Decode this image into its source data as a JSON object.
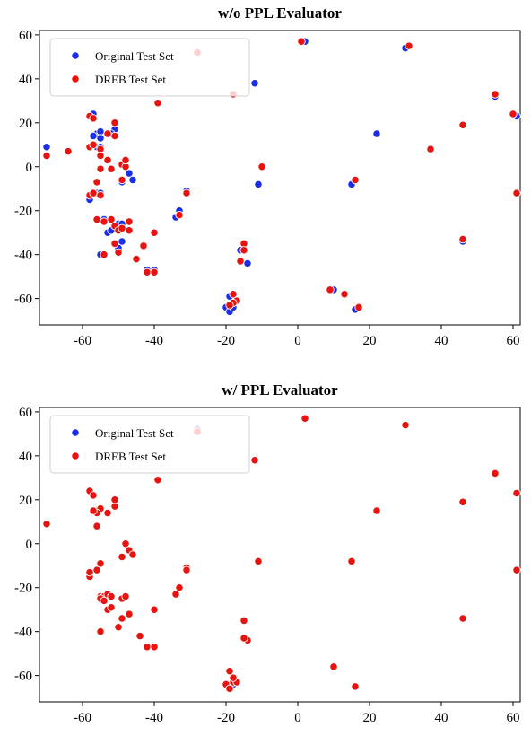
{
  "colors": {
    "original": "#1a2ee8",
    "dreb": "#e8120f"
  },
  "chart_data": [
    {
      "type": "scatter",
      "title": "w/o PPL Evaluator",
      "xlim": [
        -72,
        62
      ],
      "ylim": [
        -72,
        62
      ],
      "xticks": [
        -60,
        -40,
        -20,
        0,
        20,
        40,
        60
      ],
      "yticks": [
        -60,
        -40,
        -20,
        0,
        20,
        40,
        60
      ],
      "legend": {
        "position": "top-left",
        "entries": [
          "Original Test Set",
          "DREB Test Set"
        ]
      },
      "series": [
        {
          "name": "Original Test Set",
          "color": "#1a2ee8",
          "points": [
            [
              -70,
              9
            ],
            [
              -58,
              -15
            ],
            [
              -56,
              15
            ],
            [
              -55,
              16
            ],
            [
              -57,
              14
            ],
            [
              -56,
              9
            ],
            [
              -55,
              9
            ],
            [
              -57,
              22
            ],
            [
              -57,
              24
            ],
            [
              -51,
              17
            ],
            [
              -51,
              20
            ],
            [
              -52,
              15
            ],
            [
              -55,
              13
            ],
            [
              -56,
              -12
            ],
            [
              -55,
              -12
            ],
            [
              -54,
              -24
            ],
            [
              -53,
              -30
            ],
            [
              -52,
              -29
            ],
            [
              -50,
              -26
            ],
            [
              -49,
              -26
            ],
            [
              -49,
              -34
            ],
            [
              -50,
              -37
            ],
            [
              -55,
              -40
            ],
            [
              -49,
              -7
            ],
            [
              -47,
              -3
            ],
            [
              -46,
              -6
            ],
            [
              -48,
              0
            ],
            [
              -28,
              52
            ],
            [
              -12,
              38
            ],
            [
              -11,
              -8
            ],
            [
              -39,
              29
            ],
            [
              -40,
              -30
            ],
            [
              -40,
              -47
            ],
            [
              -42,
              -47
            ],
            [
              -31,
              -11
            ],
            [
              -33,
              -20
            ],
            [
              -34,
              -23
            ],
            [
              -15,
              -35
            ],
            [
              -14,
              -44
            ],
            [
              -16,
              -38
            ],
            [
              -20,
              -64
            ],
            [
              -19,
              -66
            ],
            [
              -18,
              -63
            ],
            [
              -17,
              -61
            ],
            [
              -19,
              -59
            ],
            [
              -18,
              -64
            ],
            [
              2,
              57
            ],
            [
              30,
              54
            ],
            [
              22,
              15
            ],
            [
              15,
              -8
            ],
            [
              9,
              -56
            ],
            [
              10,
              -56
            ],
            [
              16,
              -65
            ],
            [
              46,
              19
            ],
            [
              46,
              -34
            ],
            [
              55,
              32
            ],
            [
              61,
              23
            ],
            [
              61,
              -12
            ]
          ]
        },
        {
          "name": "DREB Test Set",
          "color": "#e8120f",
          "points": [
            [
              -70,
              5
            ],
            [
              -64,
              7
            ],
            [
              -58,
              23
            ],
            [
              -57,
              22
            ],
            [
              -58,
              9
            ],
            [
              -57,
              10
            ],
            [
              -55,
              8
            ],
            [
              -53,
              15
            ],
            [
              -51,
              20
            ],
            [
              -51,
              14
            ],
            [
              -55,
              5
            ],
            [
              -53,
              3
            ],
            [
              -49,
              1
            ],
            [
              -48,
              0
            ],
            [
              -48,
              3
            ],
            [
              -49,
              -6
            ],
            [
              -52,
              -1
            ],
            [
              -55,
              -1
            ],
            [
              -56,
              -7
            ],
            [
              -55,
              -13
            ],
            [
              -58,
              -13
            ],
            [
              -57,
              -12
            ],
            [
              -56,
              -24
            ],
            [
              -54,
              -25
            ],
            [
              -52,
              -24
            ],
            [
              -51,
              -27
            ],
            [
              -50,
              -29
            ],
            [
              -49,
              -28
            ],
            [
              -47,
              -25
            ],
            [
              -47,
              -29
            ],
            [
              -51,
              -35
            ],
            [
              -54,
              -40
            ],
            [
              -50,
              -39
            ],
            [
              -45,
              -42
            ],
            [
              -43,
              -36
            ],
            [
              -42,
              -48
            ],
            [
              -40,
              -48
            ],
            [
              -40,
              -30
            ],
            [
              -39,
              29
            ],
            [
              -33,
              -22
            ],
            [
              -31,
              -12
            ],
            [
              -28,
              52
            ],
            [
              -18,
              33
            ],
            [
              -10,
              0
            ],
            [
              -15,
              -35
            ],
            [
              -15,
              -38
            ],
            [
              -16,
              -43
            ],
            [
              -18,
              -58
            ],
            [
              -17,
              -61
            ],
            [
              -18,
              -62
            ],
            [
              -19,
              -63
            ],
            [
              1,
              57
            ],
            [
              31,
              55
            ],
            [
              37,
              8
            ],
            [
              16,
              -6
            ],
            [
              9,
              -56
            ],
            [
              13,
              -58
            ],
            [
              17,
              -64
            ],
            [
              46,
              19
            ],
            [
              46,
              -33
            ],
            [
              55,
              33
            ],
            [
              60,
              24
            ],
            [
              61,
              -12
            ]
          ]
        }
      ]
    },
    {
      "type": "scatter",
      "title": "w/ PPL Evaluator",
      "xlim": [
        -72,
        62
      ],
      "ylim": [
        -72,
        62
      ],
      "xticks": [
        -60,
        -40,
        -20,
        0,
        20,
        40,
        60
      ],
      "yticks": [
        -60,
        -40,
        -20,
        0,
        20,
        40,
        60
      ],
      "legend": {
        "position": "top-left",
        "entries": [
          "Original Test Set",
          "DREB Test Set"
        ]
      },
      "series": [
        {
          "name": "Original Test Set",
          "color": "#1a2ee8",
          "points": [
            [
              -28,
              52
            ],
            [
              -58,
              -15
            ],
            [
              -18,
              -64
            ],
            [
              -19,
              -66
            ]
          ]
        },
        {
          "name": "DREB Test Set",
          "color": "#e8120f",
          "points": [
            [
              -70,
              9
            ],
            [
              -58,
              24
            ],
            [
              -57,
              22
            ],
            [
              -56,
              15
            ],
            [
              -55,
              16
            ],
            [
              -56,
              14
            ],
            [
              -57,
              15
            ],
            [
              -56,
              8
            ],
            [
              -53,
              14
            ],
            [
              -51,
              17
            ],
            [
              -51,
              20
            ],
            [
              -55,
              -9
            ],
            [
              -56,
              -12
            ],
            [
              -58,
              -15
            ],
            [
              -58,
              -13
            ],
            [
              -49,
              -6
            ],
            [
              -48,
              0
            ],
            [
              -47,
              -3
            ],
            [
              -46,
              -5
            ],
            [
              -55,
              -24
            ],
            [
              -54,
              -24
            ],
            [
              -53,
              -23
            ],
            [
              -55,
              -25
            ],
            [
              -54,
              -26
            ],
            [
              -52,
              -24
            ],
            [
              -53,
              -30
            ],
            [
              -52,
              -29
            ],
            [
              -49,
              -25
            ],
            [
              -48,
              -24
            ],
            [
              -49,
              -34
            ],
            [
              -50,
              -38
            ],
            [
              -47,
              -32
            ],
            [
              -55,
              -40
            ],
            [
              -44,
              -42
            ],
            [
              -42,
              -47
            ],
            [
              -40,
              -47
            ],
            [
              -40,
              -30
            ],
            [
              -39,
              29
            ],
            [
              -34,
              -23
            ],
            [
              -33,
              -20
            ],
            [
              -31,
              -11
            ],
            [
              -31,
              -12
            ],
            [
              -28,
              51
            ],
            [
              -12,
              38
            ],
            [
              -11,
              -8
            ],
            [
              -15,
              -35
            ],
            [
              -14,
              -44
            ],
            [
              -15,
              -43
            ],
            [
              -19,
              -58
            ],
            [
              -18,
              -63
            ],
            [
              -20,
              -64
            ],
            [
              -19,
              -66
            ],
            [
              -17,
              -63
            ],
            [
              -18,
              -61
            ],
            [
              2,
              57
            ],
            [
              30,
              54
            ],
            [
              22,
              15
            ],
            [
              15,
              -8
            ],
            [
              10,
              -56
            ],
            [
              16,
              -65
            ],
            [
              46,
              19
            ],
            [
              46,
              -34
            ],
            [
              55,
              32
            ],
            [
              61,
              23
            ],
            [
              61,
              -12
            ]
          ]
        }
      ]
    }
  ]
}
